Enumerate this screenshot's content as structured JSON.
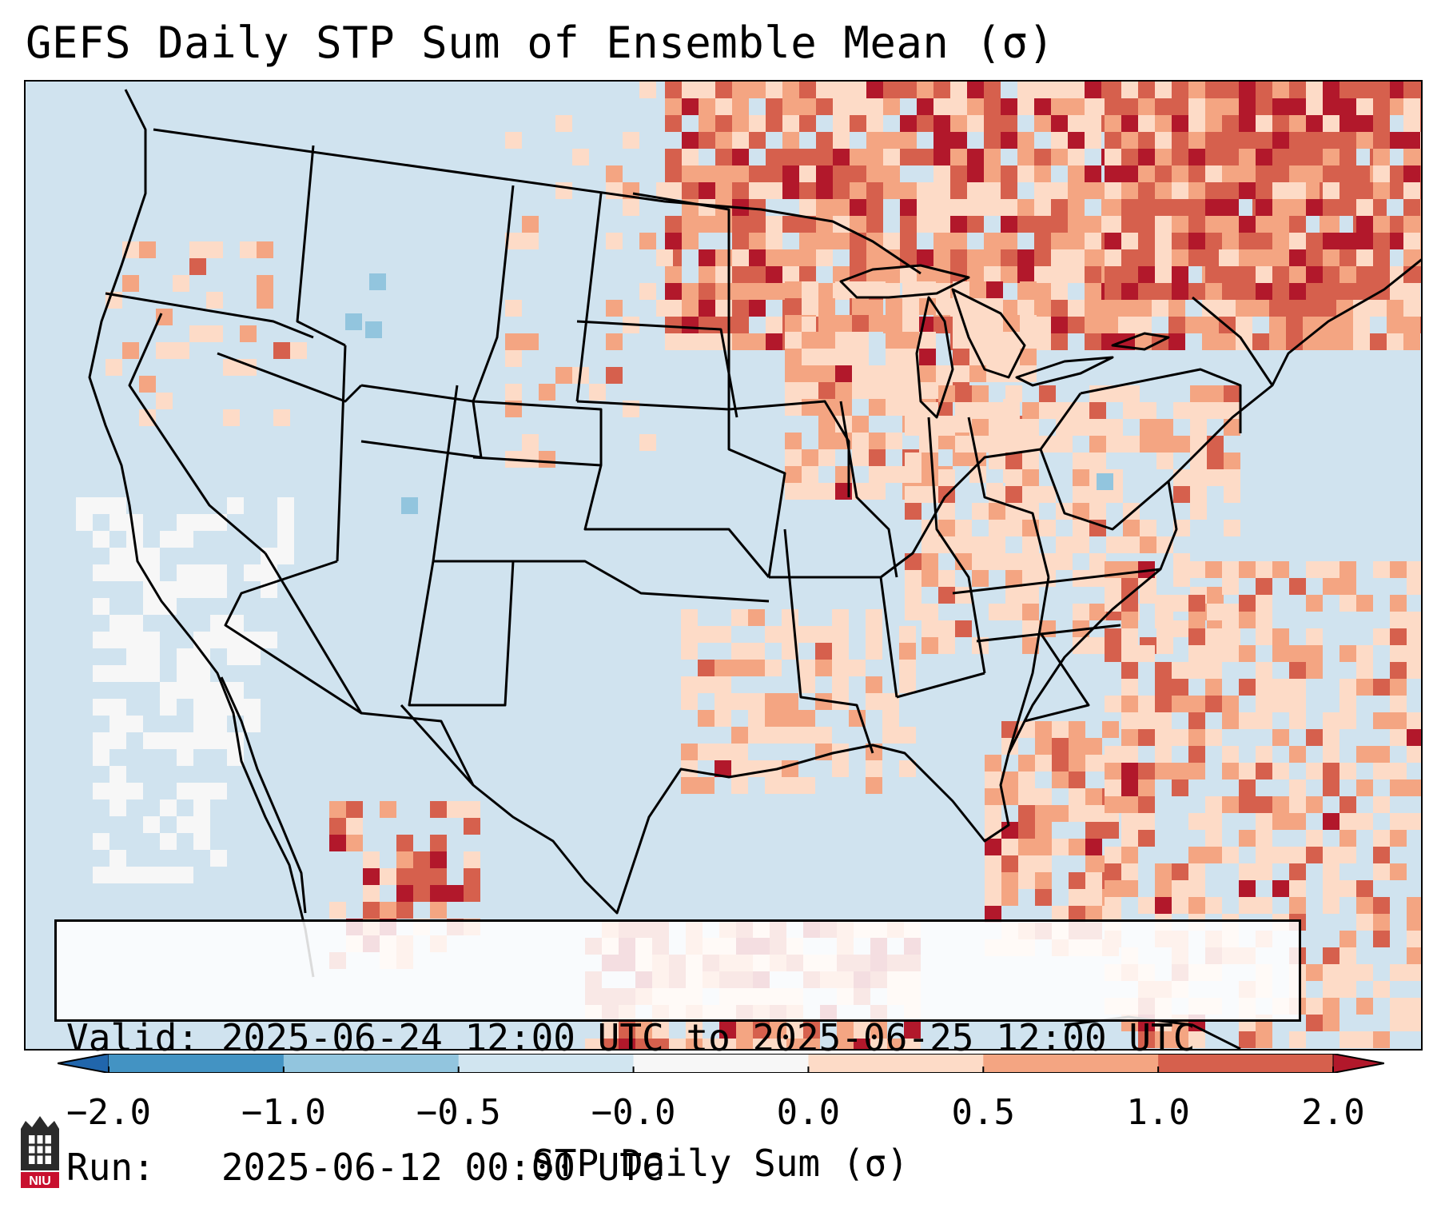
{
  "title": "GEFS Daily STP Sum of Ensemble Mean (σ)",
  "info": {
    "valid_line": "Valid: 2025-06-24 12:00 UTC to 2025-06-25 12:00 UTC",
    "run_line": "Run:   2025-06-12 00:00 UTC"
  },
  "colorbar": {
    "label": "STP Daily Sum (σ)",
    "bins": [
      {
        "from": "-2.0",
        "to": "-1.0",
        "color": "#4393c3"
      },
      {
        "from": "-1.0",
        "to": "-0.5",
        "color": "#92c5de"
      },
      {
        "from": "-0.5",
        "to": "-0.0",
        "color": "#d1e5f0"
      },
      {
        "from": "-0.0",
        "to": "0.0",
        "color": "#f7f7f7"
      },
      {
        "from": "0.0",
        "to": "0.5",
        "color": "#fddbc7"
      },
      {
        "from": "0.5",
        "to": "1.0",
        "color": "#f4a582"
      },
      {
        "from": "1.0",
        "to": "2.0",
        "color": "#d6604d"
      }
    ],
    "under_color": "#2166ac",
    "over_color": "#b2182b",
    "tick_labels": [
      "−2.0",
      "−1.0",
      "−0.5",
      "−0.0",
      "0.0",
      "0.5",
      "1.0",
      "2.0"
    ]
  },
  "map": {
    "background_color": "#d1e5f0",
    "land_outline_color": "#000000",
    "regions": [
      {
        "name": "northeast-canada-high",
        "category": "1.0 to 2.0"
      },
      {
        "name": "great-lakes-elevated",
        "category": "0.5 to 1.0"
      },
      {
        "name": "ohio-valley-mid-atlantic",
        "category": "0.0 to 0.5"
      },
      {
        "name": "gulf-coast-florida",
        "category": "0.5 to 1.0"
      },
      {
        "name": "eastern-pacific-offshore",
        "category": "-0.0 to 0.0"
      },
      {
        "name": "western-atlantic",
        "category": "0.0 to 0.5"
      }
    ]
  },
  "logo": {
    "text": "NIU"
  }
}
